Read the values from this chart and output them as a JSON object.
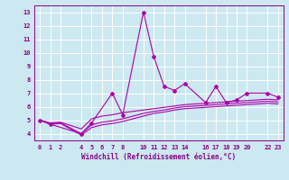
{
  "title": "",
  "xlabel": "Windchill (Refroidissement éolien,°C)",
  "ylabel": "",
  "background_color": "#cce8f0",
  "grid_color": "#ffffff",
  "line_color": "#aa00aa",
  "ylim": [
    3.5,
    13.5
  ],
  "xlim": [
    -0.5,
    23.5
  ],
  "yticks": [
    4,
    5,
    6,
    7,
    8,
    9,
    10,
    11,
    12,
    13
  ],
  "xticks": [
    0,
    1,
    2,
    4,
    5,
    6,
    7,
    8,
    10,
    11,
    12,
    13,
    14,
    16,
    17,
    18,
    19,
    20,
    22,
    23
  ],
  "lines": [
    {
      "x": [
        0,
        1,
        4,
        5,
        7,
        8,
        10,
        11,
        12,
        13,
        14,
        16,
        17,
        18,
        19,
        20,
        22,
        23
      ],
      "y": [
        5.0,
        4.7,
        4.0,
        4.8,
        7.0,
        5.4,
        13.0,
        9.7,
        7.5,
        7.2,
        7.7,
        6.3,
        7.5,
        6.3,
        6.5,
        7.0,
        7.0,
        6.7
      ],
      "marker": "D",
      "markersize": 2.0,
      "linewidth": 0.8
    },
    {
      "x": [
        0,
        1,
        2,
        4,
        5,
        6,
        7,
        8,
        10,
        11,
        12,
        13,
        14,
        16,
        17,
        18,
        19,
        20,
        22,
        23
      ],
      "y": [
        5.0,
        4.8,
        4.85,
        4.35,
        5.1,
        5.3,
        5.4,
        5.55,
        5.75,
        5.85,
        5.95,
        6.05,
        6.15,
        6.25,
        6.3,
        6.35,
        6.4,
        6.45,
        6.55,
        6.5
      ],
      "marker": null,
      "markersize": 0,
      "linewidth": 0.8
    },
    {
      "x": [
        0,
        1,
        2,
        4,
        5,
        6,
        7,
        8,
        10,
        11,
        12,
        13,
        14,
        16,
        17,
        18,
        19,
        20,
        22,
        23
      ],
      "y": [
        5.0,
        4.75,
        4.8,
        4.0,
        4.65,
        4.85,
        4.95,
        5.1,
        5.5,
        5.65,
        5.75,
        5.9,
        6.0,
        6.1,
        6.15,
        6.2,
        6.25,
        6.3,
        6.4,
        6.35
      ],
      "marker": null,
      "markersize": 0,
      "linewidth": 0.8
    },
    {
      "x": [
        0,
        1,
        2,
        4,
        5,
        6,
        7,
        8,
        10,
        11,
        12,
        13,
        14,
        16,
        17,
        18,
        19,
        20,
        22,
        23
      ],
      "y": [
        5.0,
        4.7,
        4.75,
        3.9,
        4.45,
        4.65,
        4.75,
        4.9,
        5.3,
        5.5,
        5.6,
        5.75,
        5.85,
        5.95,
        6.0,
        6.05,
        6.1,
        6.15,
        6.25,
        6.2
      ],
      "marker": null,
      "markersize": 0,
      "linewidth": 0.8
    }
  ]
}
